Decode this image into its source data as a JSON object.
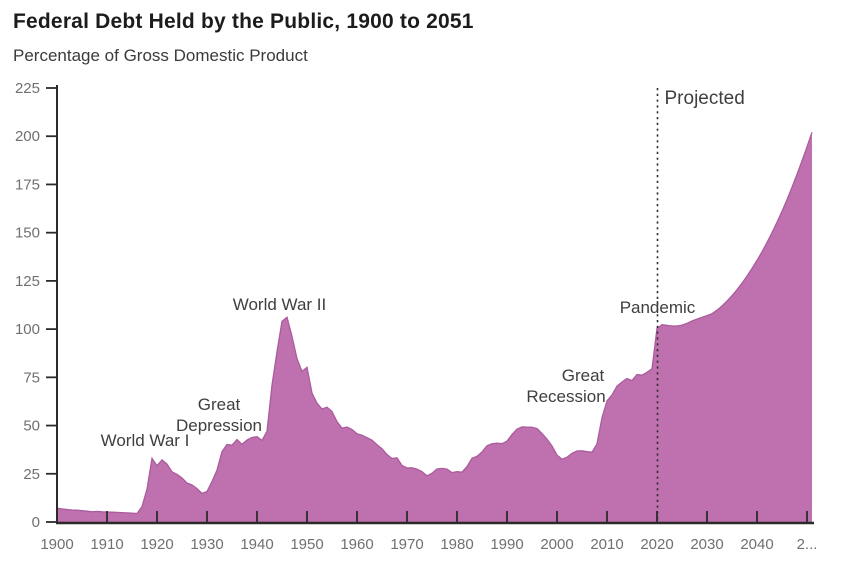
{
  "title": "Federal Debt Held by the Public, 1900 to 2051",
  "subtitle": "Percentage of Gross Domestic Product",
  "colors": {
    "area_fill": "#bf70ae",
    "area_edge": "#aa5c9c",
    "axis": "#2b2b2b",
    "tick_label": "#707070",
    "annotation": "#3f3f3f",
    "projection_line": "#2e2e2e",
    "background": "#ffffff"
  },
  "chart_data": {
    "type": "area",
    "title": "Federal Debt Held by the Public, 1900 to 2051",
    "ylabel": "Percentage of Gross Domestic Product",
    "xlabel": "",
    "grid": false,
    "legend": "none",
    "xlim": [
      1900,
      2051
    ],
    "ylim": [
      0,
      225
    ],
    "yticks": [
      0,
      25,
      50,
      75,
      100,
      125,
      150,
      175,
      200,
      225
    ],
    "xticks": [
      {
        "year": 1900,
        "label": "1900"
      },
      {
        "year": 1910,
        "label": "1910"
      },
      {
        "year": 1920,
        "label": "1920"
      },
      {
        "year": 1930,
        "label": "1930"
      },
      {
        "year": 1940,
        "label": "1940"
      },
      {
        "year": 1950,
        "label": "1950"
      },
      {
        "year": 1960,
        "label": "1960"
      },
      {
        "year": 1970,
        "label": "1970"
      },
      {
        "year": 1980,
        "label": "1980"
      },
      {
        "year": 1990,
        "label": "1990"
      },
      {
        "year": 2000,
        "label": "2000"
      },
      {
        "year": 2010,
        "label": "2010"
      },
      {
        "year": 2020,
        "label": "2020"
      },
      {
        "year": 2030,
        "label": "2030"
      },
      {
        "year": 2040,
        "label": "2040"
      },
      {
        "year": 2050,
        "label": "2..."
      }
    ],
    "projection_divider_year": 2020.1,
    "x_start": 1900,
    "x_step": 1,
    "values": [
      7.2,
      6.8,
      6.5,
      6.2,
      6.1,
      5.9,
      5.6,
      5.3,
      5.5,
      5.3,
      5.2,
      5.1,
      5.0,
      4.8,
      4.7,
      4.6,
      4.4,
      8.0,
      17.0,
      33.0,
      29.2,
      32.2,
      30.0,
      26.0,
      24.7,
      22.8,
      20.2,
      19.2,
      17.3,
      14.8,
      15.8,
      21.0,
      26.9,
      36.5,
      40.2,
      39.8,
      42.7,
      40.3,
      42.5,
      43.8,
      44.2,
      42.3,
      47.0,
      70.9,
      88.3,
      104.0,
      106.1,
      96.2,
      84.7,
      78.0,
      80.2,
      66.9,
      61.6,
      58.6,
      59.5,
      57.3,
      52.0,
      48.7,
      49.2,
      47.9,
      45.7,
      45.0,
      43.7,
      42.4,
      40.1,
      38.0,
      35.0,
      32.9,
      33.3,
      29.3,
      28.0,
      28.1,
      27.4,
      26.1,
      23.9,
      25.3,
      27.5,
      27.8,
      27.4,
      25.6,
      26.1,
      25.8,
      28.7,
      33.0,
      34.0,
      36.3,
      39.5,
      40.6,
      40.9,
      40.6,
      41.9,
      45.3,
      48.1,
      49.3,
      49.2,
      49.1,
      48.4,
      45.9,
      43.0,
      39.4,
      34.7,
      32.5,
      33.6,
      35.6,
      36.8,
      36.9,
      36.5,
      36.2,
      40.5,
      54.1,
      62.8,
      65.9,
      70.4,
      72.6,
      74.4,
      73.3,
      76.4,
      76.1,
      77.6,
      79.4,
      100.3,
      102.3,
      101.9,
      101.6,
      101.6,
      102.1,
      103.0,
      104.2,
      105.2,
      106.1,
      107.0,
      108.0,
      109.8,
      112.0,
      114.5,
      117.3,
      120.4,
      123.8,
      127.5,
      131.4,
      135.6,
      140.1,
      144.9,
      150.0,
      155.4,
      161.1,
      167.1,
      173.5,
      180.2,
      187.2,
      194.5,
      202.0
    ],
    "annotations": [
      {
        "id": "world-war-1",
        "lines": [
          "World War I"
        ],
        "year": 1917.6,
        "pct": 39.4,
        "anchor": "middle",
        "size": 17,
        "line_dx": [
          0
        ]
      },
      {
        "id": "great-depression",
        "lines": [
          "Great",
          "Depression"
        ],
        "year": 1932.4,
        "pct": 58.1,
        "anchor": "middle",
        "size": 17,
        "line_dx": [
          0,
          0
        ]
      },
      {
        "id": "world-war-2",
        "lines": [
          "World War II"
        ],
        "year": 1944.5,
        "pct": 109.9,
        "anchor": "middle",
        "size": 17,
        "line_dx": [
          0
        ]
      },
      {
        "id": "great-recession",
        "lines": [
          "Great",
          "Recession"
        ],
        "year": 2001.8,
        "pct": 73.1,
        "anchor": "middle",
        "size": 17,
        "line_dx": [
          17,
          0
        ]
      },
      {
        "id": "pandemic",
        "lines": [
          "Pandemic"
        ],
        "year": 2020.1,
        "pct": 108.4,
        "anchor": "middle",
        "size": 17,
        "line_dx": [
          0
        ]
      },
      {
        "id": "projected",
        "lines": [
          "Projected"
        ],
        "year": 2021.4,
        "pct": 216.7,
        "anchor": "start",
        "size": 19,
        "line_dx": [
          0
        ]
      }
    ]
  }
}
